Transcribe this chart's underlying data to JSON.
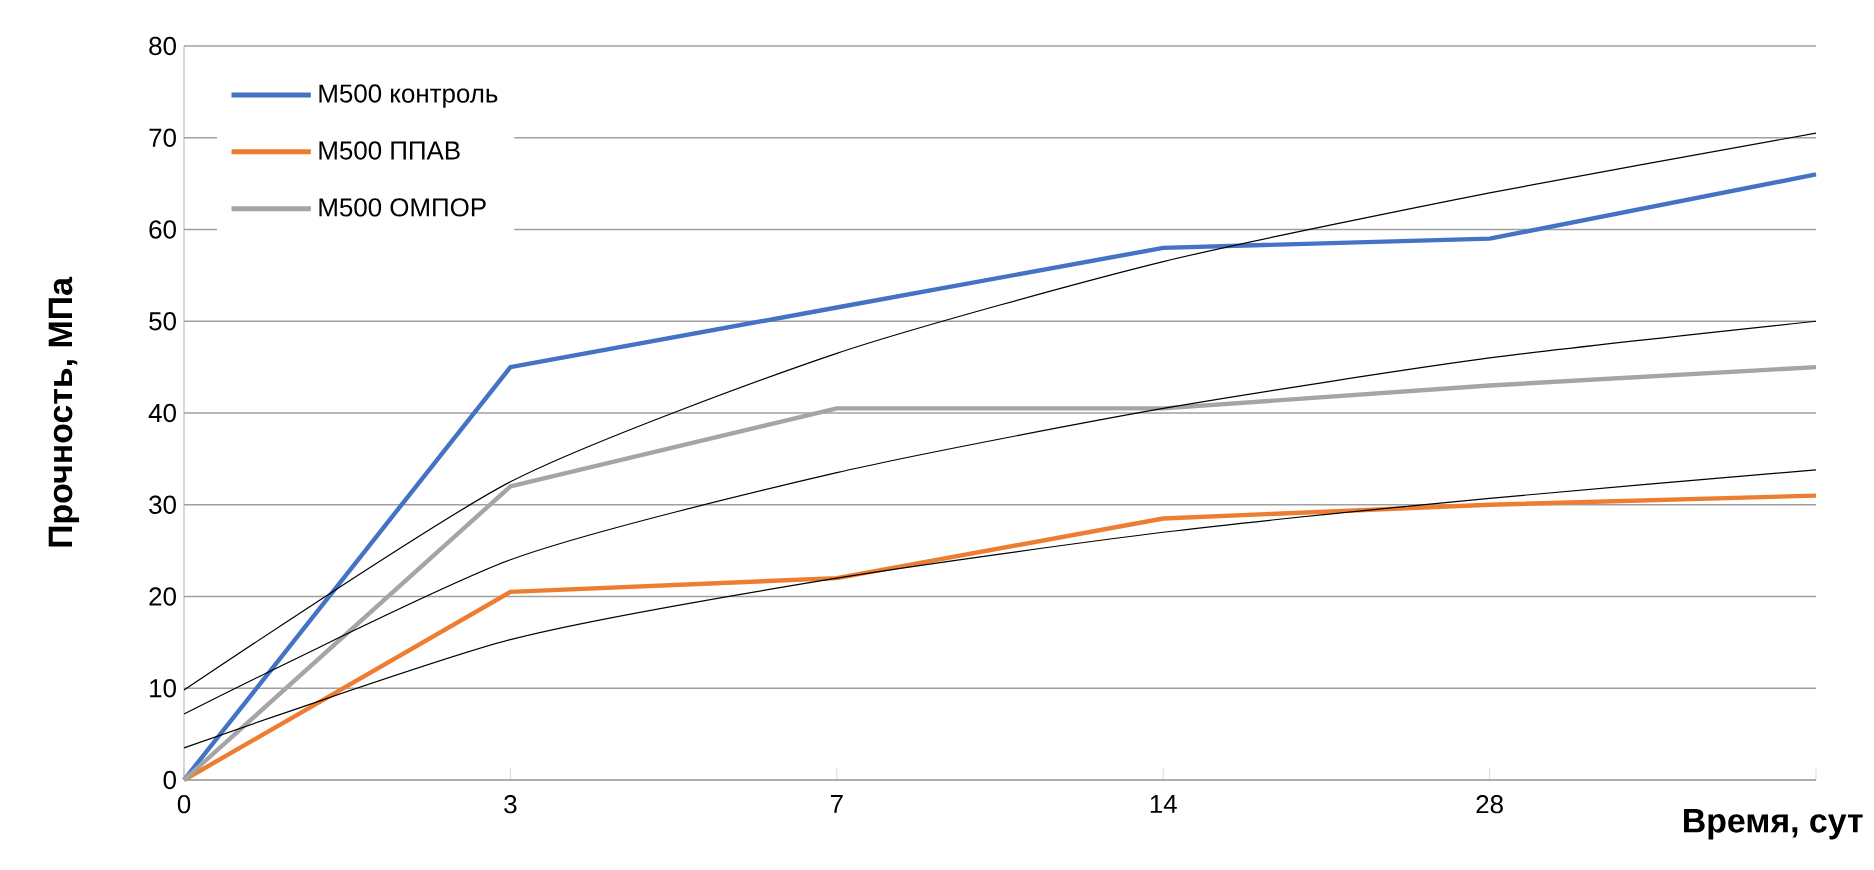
{
  "chart_data": {
    "type": "line",
    "xlabel": "Время, сут",
    "ylabel": "Прочность, МПа",
    "categories": [
      "0",
      "3",
      "7",
      "14",
      "28",
      null
    ],
    "ylim": [
      0,
      80
    ],
    "yticks": [
      0,
      10,
      20,
      30,
      40,
      50,
      60,
      70,
      80
    ],
    "grid": "y",
    "legend": "top left",
    "series": [
      {
        "name": "М500 контроль",
        "color": "#4472c4",
        "values": [
          0,
          45,
          51.5,
          58,
          59,
          66
        ]
      },
      {
        "name": "М500 ППАВ",
        "color": "#ed7d31",
        "values": [
          0,
          20.5,
          22,
          28.5,
          30,
          31
        ]
      },
      {
        "name": "М500 ОМПОР",
        "color": "#a5a5a5",
        "values": [
          0,
          32,
          40.5,
          40.5,
          43,
          45
        ]
      },
      {
        "type": "line",
        "color": "#000000",
        "values": [
          9.8,
          32.5,
          46.5,
          56.5,
          64,
          70.5
        ]
      },
      {
        "type": "line",
        "color": "#000000",
        "values": [
          7.2,
          24,
          33.5,
          40.5,
          46,
          50
        ]
      },
      {
        "type": "line",
        "color": "#000000",
        "values": [
          3.5,
          15.3,
          22,
          27,
          30.7,
          33.8
        ]
      }
    ]
  }
}
